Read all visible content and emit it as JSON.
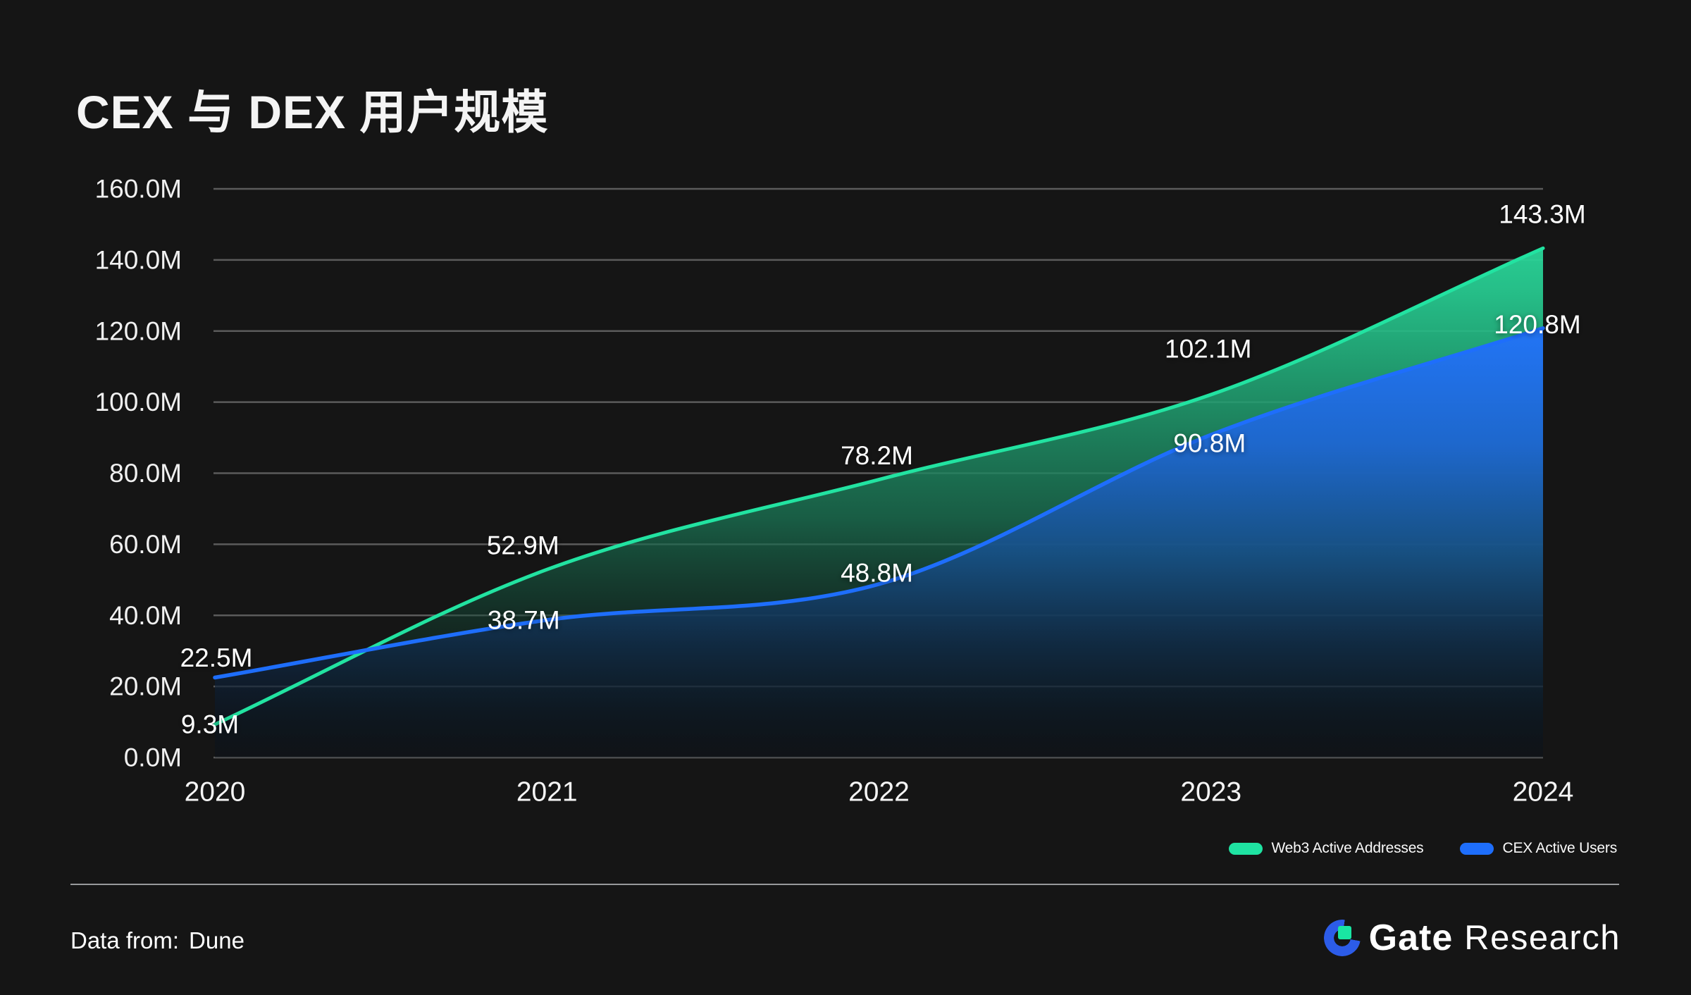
{
  "header": {
    "title": "CEX 与 DEX 用户规模"
  },
  "chart_data": {
    "type": "area",
    "x": [
      2020,
      2021,
      2022,
      2023,
      2024
    ],
    "x_labels": [
      "2020",
      "2021",
      "2022",
      "2023",
      "2024"
    ],
    "series": [
      {
        "name": "Web3 Active Addresses",
        "color": "#22e3a1",
        "values": [
          9.3,
          52.9,
          78.2,
          102.1,
          143.3
        ],
        "point_labels": [
          "9.3M",
          "52.9M",
          "78.2M",
          "102.1M",
          "143.3M"
        ]
      },
      {
        "name": "CEX Active Users",
        "color": "#1e6efc",
        "values": [
          22.5,
          38.7,
          48.8,
          90.8,
          120.8
        ],
        "point_labels": [
          "22.5M",
          "38.7M",
          "48.8M",
          "90.8M",
          "120.8M"
        ]
      }
    ],
    "ylim": [
      0,
      160
    ],
    "y_ticks": [
      "0.0M",
      "20.0M",
      "40.0M",
      "60.0M",
      "80.0M",
      "100.0M",
      "120.0M",
      "140.0M",
      "160.0M"
    ],
    "grid": true,
    "legend_position": "bottom-right"
  },
  "legend": {
    "items": [
      {
        "label": "Web3 Active Addresses",
        "color": "#1fe3a2"
      },
      {
        "label": "CEX Active Users",
        "color": "#1e6efc"
      }
    ]
  },
  "footer": {
    "source_label": "Data from:",
    "source_value": "Dune",
    "brand": {
      "name_bold": "Gate",
      "name_regular": "Research"
    }
  },
  "colors": {
    "background": "#151515",
    "green_accent": "#22e3a1",
    "blue_accent": "#1e6efc",
    "grid_line": "rgba(255,255,255,0.30)",
    "text": "#f2f2f2"
  }
}
